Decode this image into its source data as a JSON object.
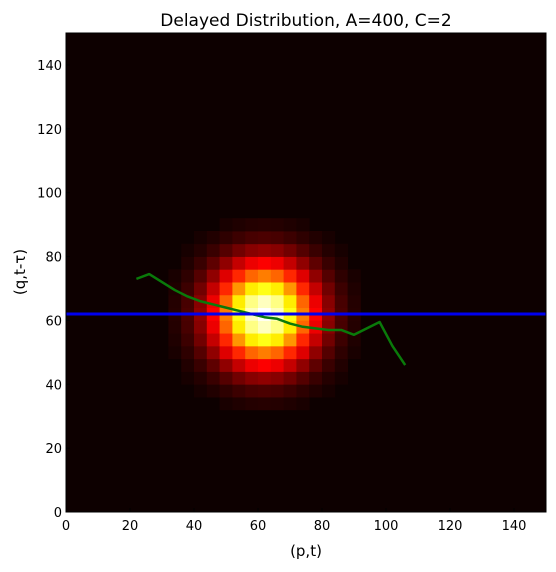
{
  "chart_data": {
    "type": "heatmap",
    "title": "Delayed Distribution, A=400, C=2",
    "xlabel": "(p,t)",
    "ylabel": "(q,t-τ)",
    "xlim": [
      0,
      150
    ],
    "ylim": [
      0,
      150
    ],
    "xticks": [
      0,
      20,
      40,
      60,
      80,
      100,
      120,
      140
    ],
    "yticks": [
      0,
      20,
      40,
      60,
      80,
      100,
      120,
      140
    ],
    "grid": false,
    "colormap": "hot",
    "background_color": "#0d0000",
    "heatmap": {
      "bin_size": 4,
      "center_x": 62,
      "center_y": 62,
      "sigma_x": 11,
      "sigma_y": 11
    },
    "series": [
      {
        "type": "line",
        "color": "#0a7a0a",
        "x": [
          22,
          26,
          30,
          34,
          38,
          42,
          46,
          50,
          54,
          58,
          62,
          66,
          70,
          74,
          78,
          82,
          86,
          90,
          94,
          98,
          102,
          106
        ],
        "y": [
          73,
          74.5,
          72,
          69.5,
          67.5,
          66,
          65,
          64,
          63,
          62,
          61,
          60.5,
          59,
          58,
          57.5,
          57,
          57,
          55.5,
          57.5,
          59.5,
          52,
          46
        ]
      },
      {
        "type": "hline",
        "color": "#0000ee",
        "y": 62
      }
    ]
  }
}
